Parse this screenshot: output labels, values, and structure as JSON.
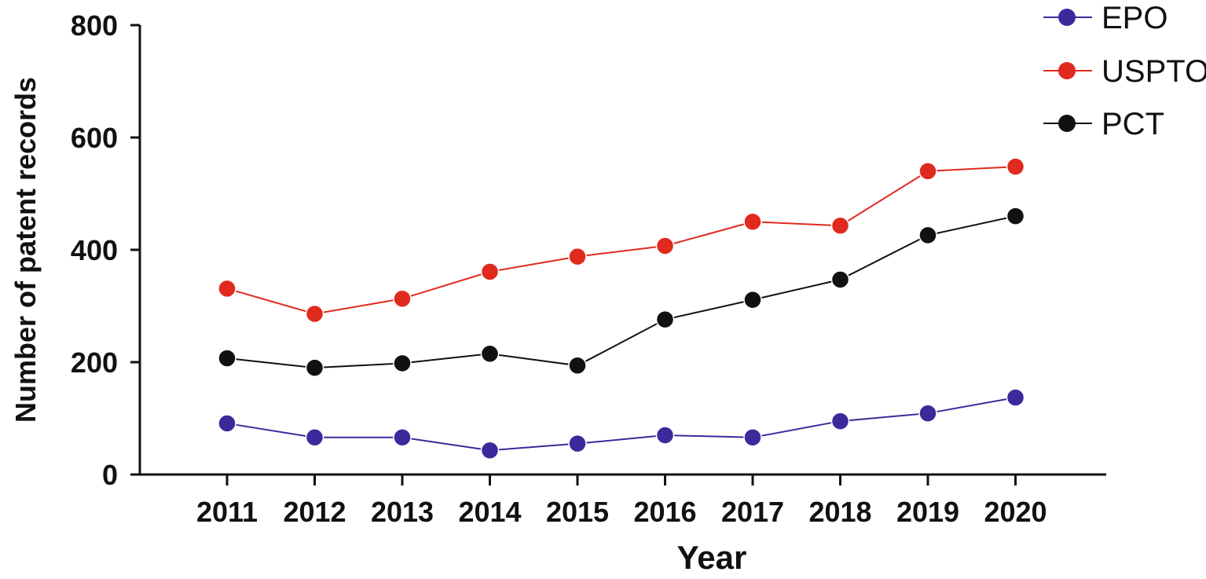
{
  "chart_data": {
    "type": "line",
    "xlabel": "Year",
    "ylabel": "Number of patent records",
    "ylim": [
      0,
      800
    ],
    "yticks": [
      0,
      200,
      400,
      600,
      800
    ],
    "categories": [
      "2011",
      "2012",
      "2013",
      "2014",
      "2015",
      "2016",
      "2017",
      "2018",
      "2019",
      "2020"
    ],
    "grid": false,
    "legend": "top-right",
    "series": [
      {
        "name": "EPO",
        "color": "#3b2a9b",
        "values": [
          91,
          66,
          66,
          43,
          55,
          70,
          66,
          95,
          109,
          137
        ]
      },
      {
        "name": "USPTO",
        "color": "#e02a1e",
        "values": [
          331,
          286,
          313,
          361,
          388,
          407,
          450,
          443,
          540,
          548
        ]
      },
      {
        "name": "PCT",
        "color": "#111111",
        "values": [
          207,
          190,
          198,
          215,
          194,
          276,
          311,
          347,
          426,
          460
        ]
      }
    ]
  }
}
